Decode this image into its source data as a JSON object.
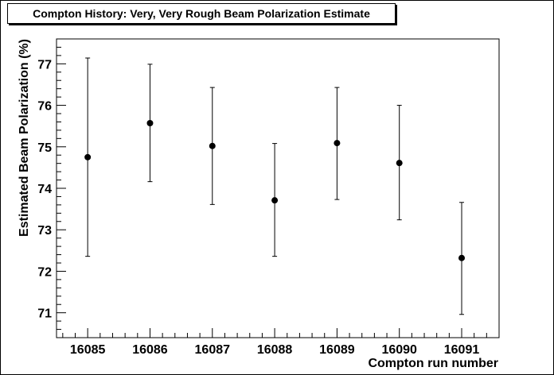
{
  "chart_data": {
    "type": "scatter",
    "title": "Compton History: Very, Very Rough Beam Polarization Estimate",
    "xlabel": "Compton run number",
    "ylabel": "Estimated Beam Polarization (%)",
    "xlim": [
      16084.5,
      16091.6
    ],
    "ylim": [
      70.4,
      77.6
    ],
    "x_ticks": [
      "16085",
      "16086",
      "16087",
      "16088",
      "16089",
      "16090",
      "16091"
    ],
    "y_ticks": [
      "71",
      "72",
      "73",
      "74",
      "75",
      "76",
      "77"
    ],
    "grid": false,
    "series": [
      {
        "x": [
          16085,
          16086,
          16087,
          16088,
          16089,
          16090,
          16091
        ],
        "y": [
          74.75,
          75.57,
          75.02,
          73.71,
          75.09,
          74.61,
          72.32
        ],
        "y_err_low": [
          72.36,
          74.16,
          73.61,
          72.36,
          73.73,
          73.24,
          70.96
        ],
        "y_err_high": [
          77.14,
          76.99,
          76.43,
          75.08,
          76.43,
          76.0,
          73.66
        ]
      }
    ]
  }
}
